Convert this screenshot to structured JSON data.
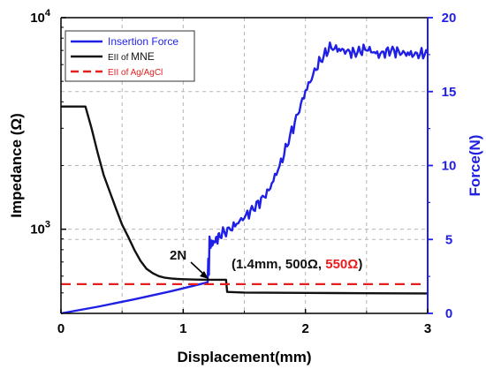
{
  "chart_data": {
    "type": "line",
    "xlabel": "Displacement(mm)",
    "ylabel_left": "Impedance (Ω)",
    "ylabel_right": "Force(N)",
    "xlim": [
      0,
      3
    ],
    "ylim_left": [
      400,
      10000
    ],
    "ylim_right": [
      0,
      20
    ],
    "left_scale": "log",
    "grid": true,
    "x_ticks": [
      "0",
      "1",
      "2",
      "3"
    ],
    "x_tick_values": [
      0,
      1,
      2,
      3
    ],
    "y_left_ticks": [
      {
        "value": 1000,
        "base": "10",
        "exp": "3"
      },
      {
        "value": 10000,
        "base": "10",
        "exp": "4"
      }
    ],
    "y_right_ticks": [
      "0",
      "5",
      "10",
      "15",
      "20"
    ],
    "y_right_tick_values": [
      0,
      5,
      10,
      15,
      20
    ],
    "legend_position": "top-left",
    "series": [
      {
        "name": "Insertion Force",
        "axis": "right",
        "color": "#1f1fe6",
        "style": "solid",
        "x": [
          0,
          0.3,
          0.6,
          0.9,
          1.2,
          1.205,
          1.21,
          1.215,
          1.22,
          1.25,
          1.3,
          1.4,
          1.5,
          1.6,
          1.7,
          1.8,
          1.9,
          2.0,
          2.1,
          2.2,
          2.3,
          2.4,
          2.5,
          2.6,
          2.7,
          2.8,
          2.9,
          3.0
        ],
        "y": [
          0,
          0.45,
          0.95,
          1.5,
          2.1,
          3.7,
          2.6,
          5.2,
          4.6,
          4.8,
          5.3,
          5.8,
          6.5,
          7.3,
          8.3,
          10.2,
          12.6,
          15.0,
          16.8,
          18.0,
          17.8,
          17.6,
          17.9,
          17.5,
          17.8,
          17.6,
          17.5,
          17.6
        ]
      },
      {
        "name": "EII of MNE",
        "axis": "left",
        "color": "#111111",
        "style": "solid",
        "x": [
          0,
          0.2,
          0.25,
          0.3,
          0.35,
          0.4,
          0.45,
          0.5,
          0.55,
          0.6,
          0.65,
          0.7,
          0.75,
          0.8,
          0.85,
          0.9,
          0.95,
          1.0,
          1.1,
          1.2,
          1.3,
          1.35,
          1.36,
          1.5,
          2.0,
          2.5,
          3.0
        ],
        "y": [
          3800,
          3800,
          3000,
          2300,
          1800,
          1500,
          1250,
          1050,
          920,
          800,
          710,
          650,
          620,
          600,
          590,
          585,
          582,
          580,
          578,
          577,
          577,
          577,
          505,
          502,
          500,
          498,
          497
        ]
      },
      {
        "name": "EII of Ag/AgCl",
        "axis": "left",
        "color": "#e61e1e",
        "style": "dashed",
        "x": [
          0,
          3
        ],
        "y": [
          550,
          550
        ]
      }
    ],
    "legend": {
      "entries": [
        {
          "parts": [
            {
              "text": "Insertion Force",
              "color": "#1f1fe6"
            }
          ]
        },
        {
          "parts": [
            {
              "text": "EII of ",
              "color": "#111111",
              "small": true
            },
            {
              "text": "MNE",
              "color": "#111111"
            }
          ]
        },
        {
          "parts": [
            {
              "text": "EII of Ag/AgCl",
              "color": "#e61e1e",
              "small": true
            }
          ]
        }
      ]
    },
    "annotations": [
      {
        "text": "2N",
        "color": "#111111"
      },
      {
        "parts": [
          {
            "text": "(1.4mm, 500Ω, ",
            "color": "#111111"
          },
          {
            "text": "550Ω",
            "color": "#e61e1e"
          },
          {
            "text": ")",
            "color": "#111111"
          }
        ]
      }
    ]
  }
}
